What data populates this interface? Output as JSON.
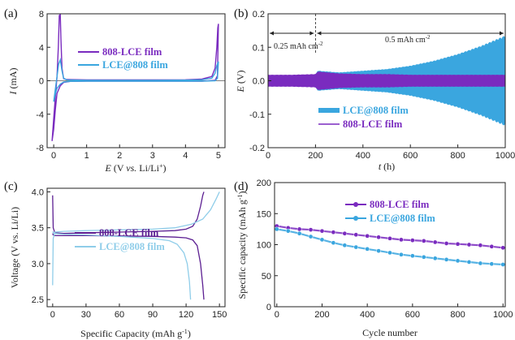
{
  "colors": {
    "purple": "#7a2bbf",
    "purple_dark": "#5c1f92",
    "blue": "#3aa6df",
    "blue_light": "#8fcde9",
    "axis": "#222222"
  },
  "chart_data": [
    {
      "id": "a",
      "panel_label": "(a)",
      "type": "line",
      "xlabel_parts": [
        "E",
        " (V ",
        "vs.",
        " Li/Li",
        "+",
        ")"
      ],
      "ylabel_parts": [
        "I",
        " (mA)"
      ],
      "xlim": [
        -0.2,
        5.2
      ],
      "ylim": [
        -8,
        8
      ],
      "xticks": [
        "0",
        "1",
        "2",
        "3",
        "4",
        "5"
      ],
      "yticks": [
        "-8",
        "-4",
        "0",
        "4",
        "8"
      ],
      "series": [
        {
          "name": "808-LCE film",
          "color": "purple",
          "x": [
            -0.05,
            0.0,
            0.05,
            0.1,
            0.14,
            0.17,
            0.2,
            0.22,
            0.25,
            0.3,
            0.4,
            1,
            2,
            3,
            4,
            4.5,
            4.8,
            4.9,
            4.95,
            4.98,
            5.0,
            4.97,
            4.9,
            4.5,
            3,
            1,
            0.5,
            0.3,
            0.2,
            0.1,
            0.05,
            0.0,
            -0.05
          ],
          "y": [
            -7.2,
            -4.5,
            -2.0,
            0.5,
            4.0,
            7.8,
            7.9,
            5.0,
            1.5,
            0.25,
            0.15,
            0.1,
            0.1,
            0.1,
            0.12,
            0.2,
            0.5,
            1.5,
            4.0,
            6.3,
            6.8,
            0.6,
            0.05,
            -0.05,
            -0.05,
            -0.05,
            -0.08,
            -0.2,
            -0.6,
            -1.5,
            -3.5,
            -5.8,
            -7.2
          ]
        },
        {
          "name": "LCE@808 film",
          "color": "blue",
          "x": [
            0.0,
            0.05,
            0.1,
            0.15,
            0.2,
            0.25,
            0.3,
            0.4,
            1,
            2,
            3,
            4,
            4.5,
            4.8,
            4.9,
            4.95,
            5.0,
            4.97,
            4.9,
            4.5,
            3,
            1,
            0.5,
            0.3,
            0.2,
            0.1,
            0.05,
            0.0
          ],
          "y": [
            -2.5,
            -1.0,
            0.5,
            2.0,
            2.5,
            1.2,
            0.3,
            0.1,
            0.05,
            0.05,
            0.05,
            0.08,
            0.12,
            0.3,
            0.9,
            1.8,
            2.3,
            0.3,
            0.0,
            -0.05,
            -0.05,
            -0.05,
            -0.08,
            -0.15,
            -0.4,
            -0.9,
            -1.6,
            -2.5
          ]
        }
      ]
    },
    {
      "id": "b",
      "panel_label": "(b)",
      "type": "line",
      "xlabel_parts": [
        "t",
        " (h)"
      ],
      "ylabel_parts": [
        "E",
        " (V)"
      ],
      "xlim": [
        0,
        1000
      ],
      "ylim": [
        -0.2,
        0.2
      ],
      "xticks": [
        "0",
        "200",
        "400",
        "600",
        "800",
        "1000"
      ],
      "yticks": [
        "-0.2",
        "-0.1",
        "0.0",
        "0.1",
        "0.2"
      ],
      "annotations": [
        "0.25 mAh cm",
        "-2",
        "0.5 mAh cm",
        "-2"
      ],
      "series": [
        {
          "name": "LCE@808 film",
          "color": "blue",
          "x": [
            0,
            100,
            200,
            210,
            300,
            400,
            500,
            600,
            700,
            800,
            900,
            1000
          ],
          "amplitude": [
            0.015,
            0.016,
            0.018,
            0.03,
            0.025,
            0.03,
            0.035,
            0.045,
            0.06,
            0.08,
            0.105,
            0.135
          ]
        },
        {
          "name": "808-LCE film",
          "color": "purple",
          "x": [
            0,
            100,
            200,
            210,
            300,
            400,
            500,
            600,
            700,
            800,
            900,
            1000
          ],
          "amplitude": [
            0.018,
            0.018,
            0.02,
            0.028,
            0.022,
            0.02,
            0.02,
            0.018,
            0.018,
            0.018,
            0.018,
            0.018
          ]
        }
      ]
    },
    {
      "id": "c",
      "panel_label": "(c)",
      "type": "line",
      "xlabel_parts": [
        "Specific Capacity (mAh g",
        "-1",
        ")"
      ],
      "ylabel_parts": [
        "Voltage (V vs. Li/Li)"
      ],
      "xlim": [
        -5,
        155
      ],
      "ylim": [
        2.4,
        4.05
      ],
      "xticks": [
        "0",
        "30",
        "60",
        "90",
        "120",
        "150"
      ],
      "yticks": [
        "2.5",
        "3.0",
        "3.5",
        "4.0"
      ],
      "series": [
        {
          "name": "808-LCE film",
          "color": "purple_dark",
          "charge": {
            "x": [
              0,
              0.5,
              2,
              10,
              30,
              60,
              90,
              110,
              120,
              126,
              130,
              133,
              135,
              136
            ],
            "y": [
              3.95,
              3.5,
              3.43,
              3.42,
              3.43,
              3.44,
              3.45,
              3.46,
              3.48,
              3.52,
              3.62,
              3.8,
              3.95,
              4.0
            ]
          },
          "discharge": {
            "x": [
              0,
              0.5,
              2,
              10,
              30,
              60,
              90,
              110,
              120,
              126,
              130,
              133,
              135,
              136
            ],
            "y": [
              3.42,
              3.4,
              3.39,
              3.39,
              3.39,
              3.385,
              3.38,
              3.37,
              3.36,
              3.33,
              3.25,
              3.0,
              2.7,
              2.5
            ]
          }
        },
        {
          "name": "LCE@808 film",
          "color": "blue_light",
          "charge": {
            "x": [
              0,
              0.5,
              2,
              10,
              30,
              60,
              90,
              110,
              125,
              135,
              142,
              147,
              150
            ],
            "y": [
              2.7,
              3.35,
              3.44,
              3.45,
              3.46,
              3.47,
              3.48,
              3.5,
              3.55,
              3.62,
              3.75,
              3.9,
              4.0
            ]
          },
          "discharge": {
            "x": [
              0,
              0.5,
              2,
              10,
              30,
              60,
              90,
              105,
              112,
              118,
              121,
              123,
              124
            ],
            "y": [
              3.45,
              3.43,
              3.42,
              3.41,
              3.4,
              3.38,
              3.35,
              3.32,
              3.27,
              3.15,
              3.0,
              2.75,
              2.5
            ]
          }
        }
      ]
    },
    {
      "id": "d",
      "panel_label": "(d)",
      "type": "scatter",
      "xlabel_parts": [
        "Cycle number"
      ],
      "ylabel_parts": [
        "Specific capacity (mAh g",
        "-1",
        ")"
      ],
      "xlim": [
        -10,
        1010
      ],
      "ylim": [
        0,
        200
      ],
      "xticks": [
        "0",
        "200",
        "400",
        "600",
        "800",
        "1000"
      ],
      "yticks": [
        "0",
        "50",
        "100",
        "150",
        "200"
      ],
      "series": [
        {
          "name": "808-LCE film",
          "color": "purple",
          "x": [
            0,
            50,
            100,
            150,
            200,
            250,
            300,
            350,
            400,
            450,
            500,
            550,
            600,
            650,
            700,
            750,
            800,
            850,
            900,
            950,
            1000
          ],
          "y": [
            130,
            127,
            125,
            124,
            122,
            120,
            118,
            116,
            114,
            112,
            110,
            108,
            107,
            106,
            104,
            102,
            101,
            100,
            99,
            97,
            95
          ]
        },
        {
          "name": "LCE@808 film",
          "color": "blue",
          "x": [
            0,
            50,
            100,
            150,
            200,
            250,
            300,
            350,
            400,
            450,
            500,
            550,
            600,
            650,
            700,
            750,
            800,
            850,
            900,
            950,
            1000
          ],
          "y": [
            125,
            122,
            118,
            113,
            108,
            103,
            99,
            96,
            93,
            90,
            87,
            84,
            82,
            80,
            78,
            76,
            74,
            72,
            70,
            69,
            68
          ]
        }
      ]
    }
  ]
}
